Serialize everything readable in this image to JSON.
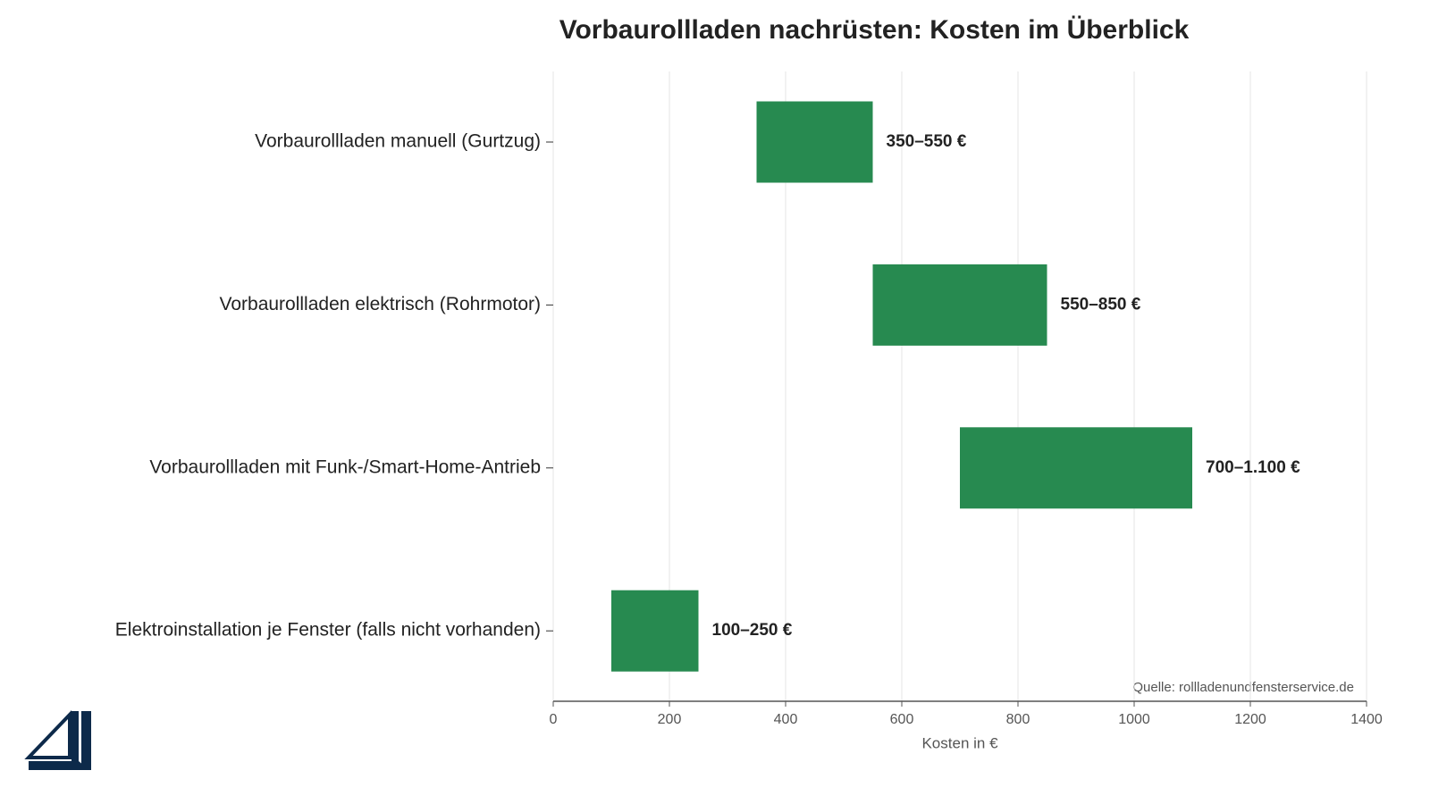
{
  "chart_data": {
    "type": "floating-bar",
    "title": "Vorbaurollladen nachrüsten: Kosten im Überblick",
    "categories": [
      "Vorbaurollladen manuell (Gurtzug)",
      "Vorbaurollladen elektrisch (Rohrmotor)",
      "Vorbaurollladen mit Funk-/Smart-Home-Antrieb",
      "Elektroinstallation je Fenster (falls nicht vorhanden)"
    ],
    "low": [
      350,
      550,
      700,
      100
    ],
    "high": [
      550,
      850,
      1100,
      250
    ],
    "value_labels": [
      "350–550 €",
      "550–850 €",
      "700–1.100 €",
      "100–250 €"
    ],
    "color": "#278a50",
    "xlabel": "Kosten in €",
    "xlim": [
      0,
      1400
    ],
    "xticks": [
      0,
      200,
      400,
      600,
      800,
      1000,
      1200,
      1400
    ],
    "grid": true,
    "source": "Quelle: rollladenundfensterservice.de"
  }
}
